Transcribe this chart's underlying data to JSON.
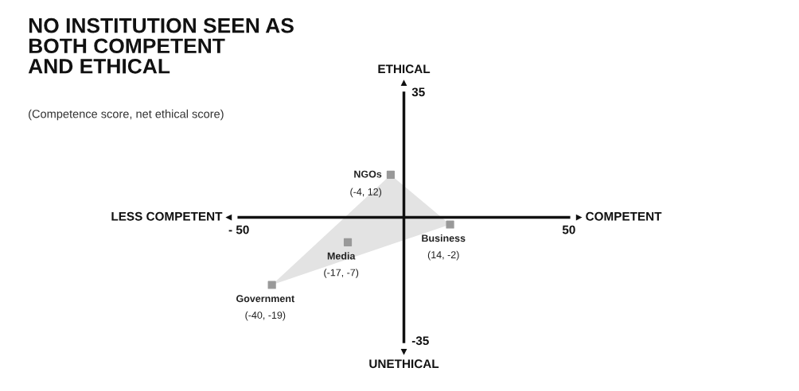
{
  "chart_data": {
    "type": "scatter",
    "title": "NO INSTITUTION SEEN AS\nBOTH COMPETENT\nAND ETHICAL",
    "subtitle": "(Competence score, net ethical score)",
    "xlabel": "COMPETENT",
    "ylabel": "ETHICAL",
    "annotations": [
      "LESS COMPETENT",
      "UNETHICAL"
    ],
    "xlim": [
      -50,
      50
    ],
    "ylim": [
      -35,
      35
    ],
    "xticks": [
      {
        "value": -50,
        "label": "- 50"
      },
      50
    ],
    "yticks": [
      35,
      -35
    ],
    "marker": "square",
    "series": [
      {
        "type": "area",
        "marker": "none",
        "color": "#e3e3e3",
        "x": [
          -40,
          -4,
          14,
          -40
        ],
        "values": [
          -19,
          12,
          -2,
          -19
        ]
      },
      {
        "name": "NGOs",
        "color": "#999999",
        "x": [
          -4
        ],
        "values": [
          12
        ],
        "value_labels": [
          "(-4, 12)"
        ]
      },
      {
        "name": "Business",
        "color": "#999999",
        "x": [
          14
        ],
        "values": [
          -2
        ],
        "value_labels": [
          "(14, -2)"
        ]
      },
      {
        "name": "Media",
        "color": "#999999",
        "x": [
          -17
        ],
        "values": [
          -7
        ],
        "value_labels": [
          "(-17, -7)"
        ]
      },
      {
        "name": "Government",
        "color": "#999999",
        "x": [
          -40
        ],
        "values": [
          -19
        ],
        "value_labels": [
          "(-40, -19)"
        ]
      }
    ]
  }
}
